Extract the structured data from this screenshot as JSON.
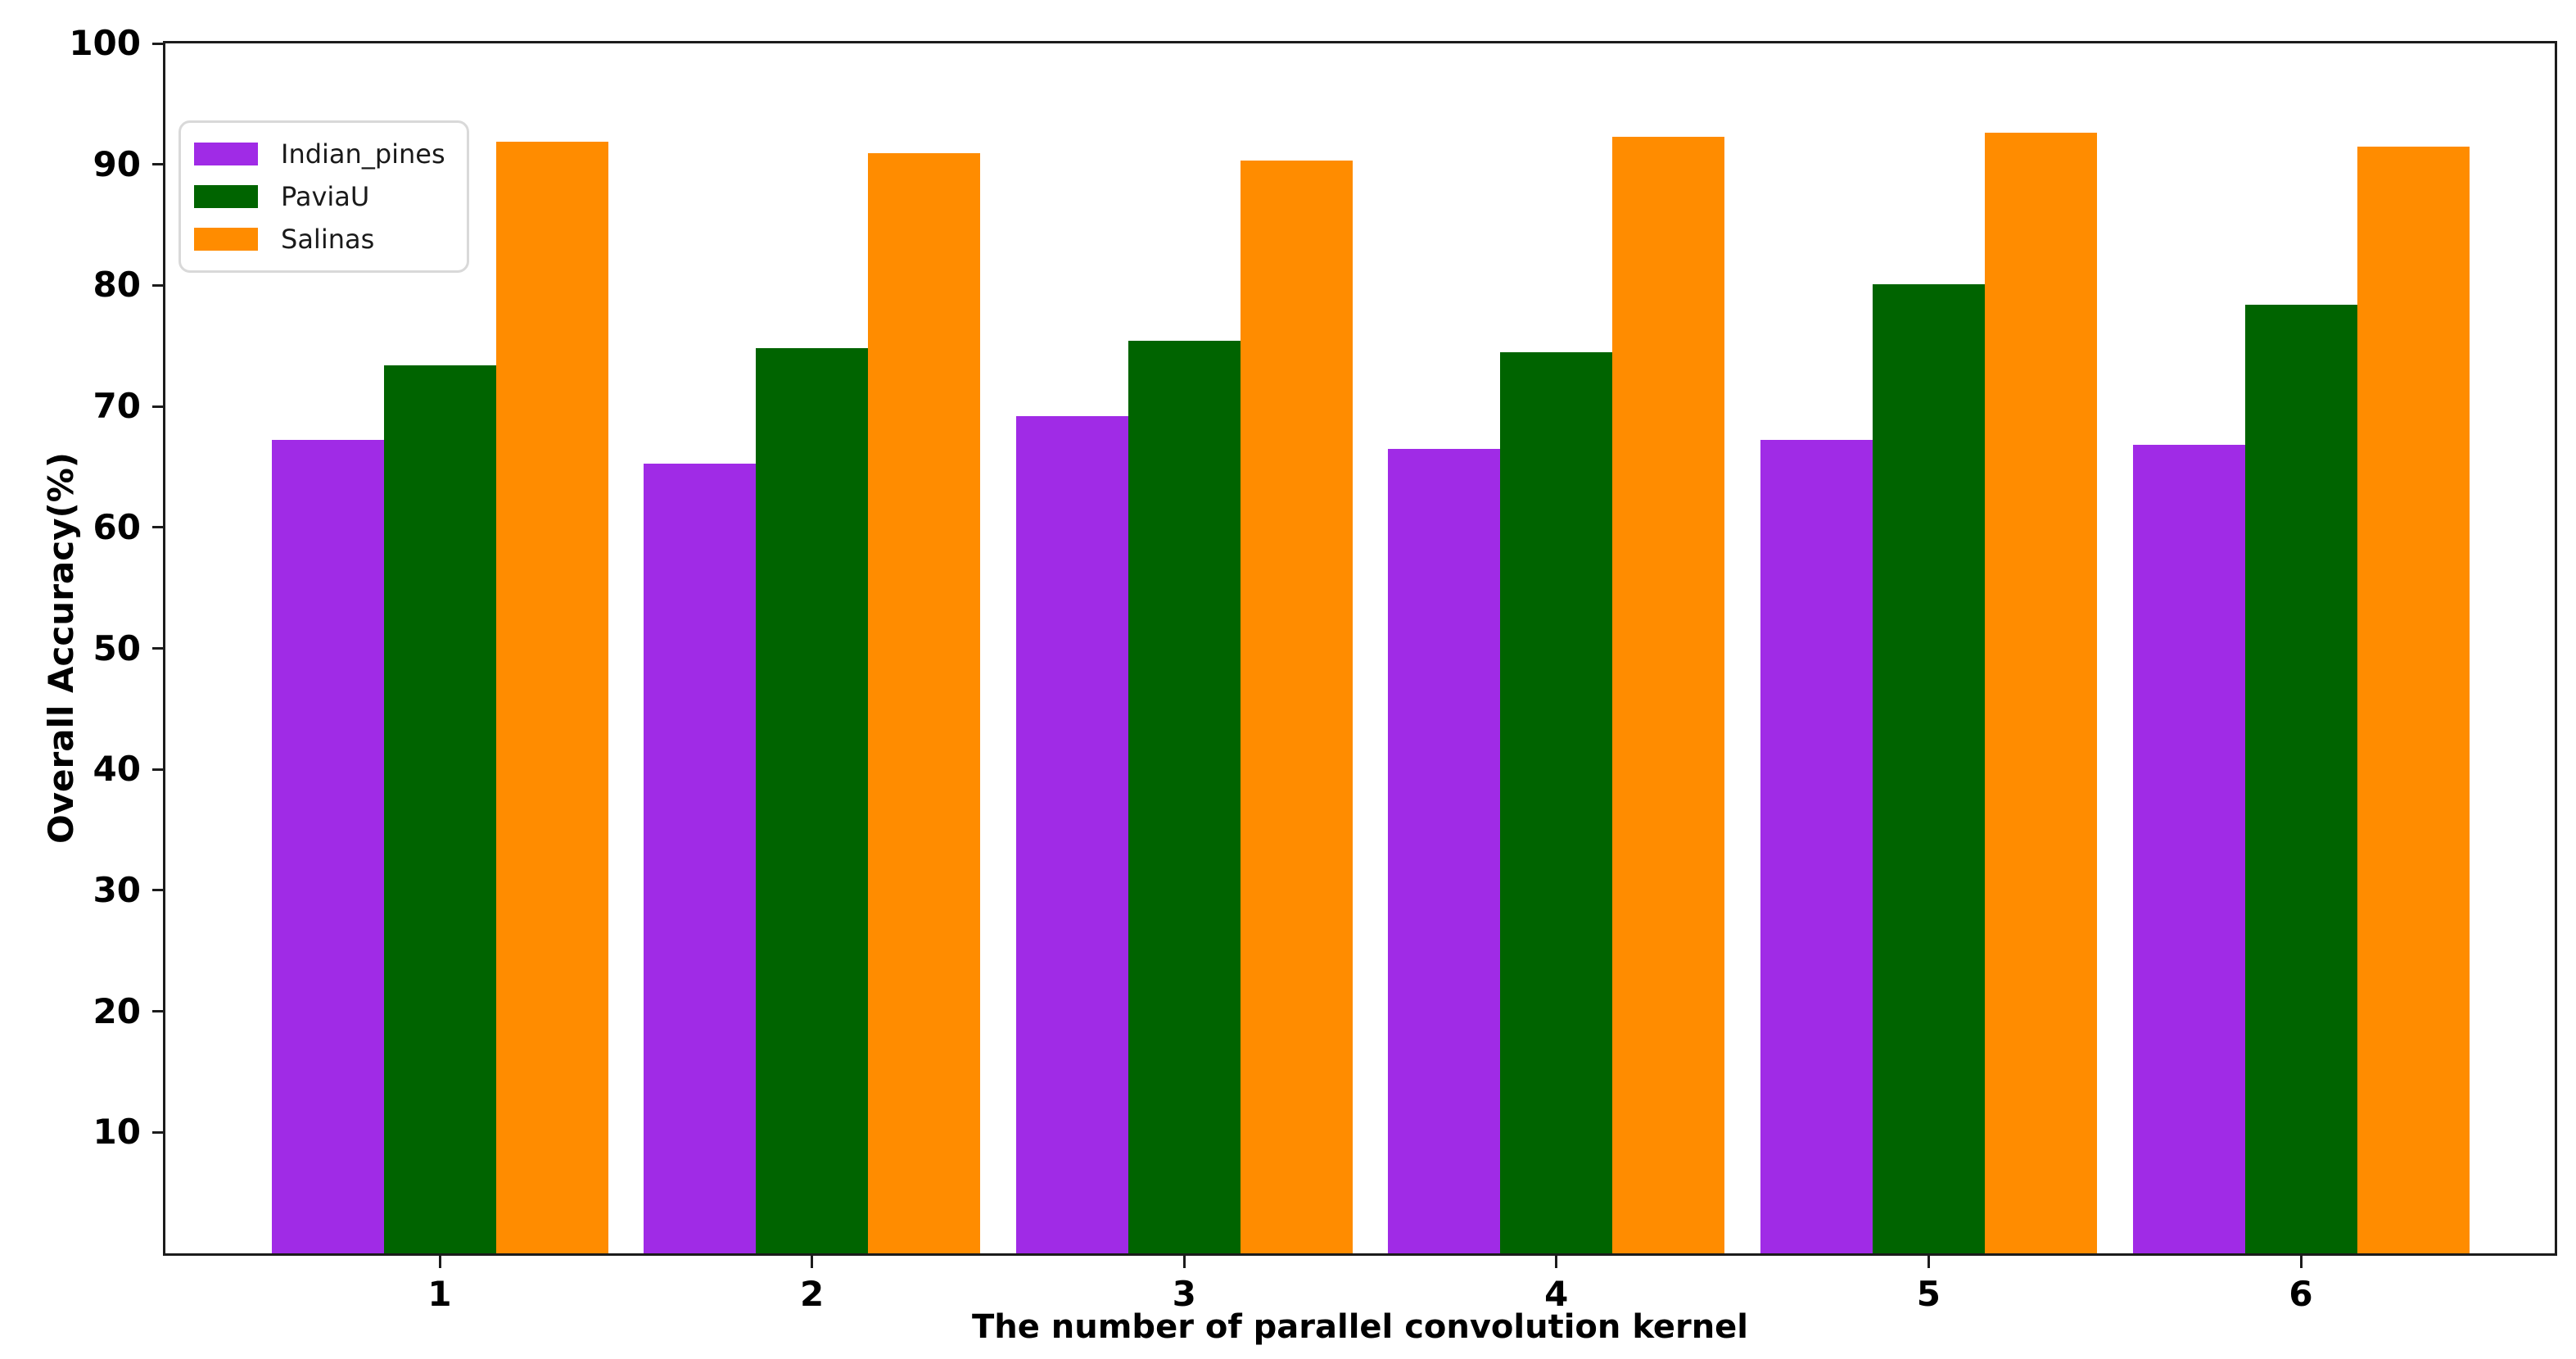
{
  "chart_data": {
    "type": "bar",
    "title": "",
    "xlabel": "The number of parallel convolution kernel",
    "ylabel": "Overall Accuracy(%)",
    "categories": [
      "1",
      "2",
      "3",
      "4",
      "5",
      "6"
    ],
    "series": [
      {
        "name": "Indian_pines",
        "color": "#a02be6",
        "values": [
          67.2,
          65.3,
          69.2,
          66.5,
          67.2,
          66.8
        ]
      },
      {
        "name": "PaviaU",
        "color": "#006400",
        "values": [
          73.4,
          74.8,
          75.4,
          74.5,
          80.1,
          78.4
        ]
      },
      {
        "name": "Salinas",
        "color": "#ff8c00",
        "values": [
          91.9,
          90.9,
          90.3,
          92.3,
          92.6,
          91.5
        ]
      }
    ],
    "ylim": [
      0,
      100
    ],
    "yticks": [
      10,
      20,
      30,
      40,
      50,
      60,
      70,
      80,
      90,
      100
    ],
    "grid": false,
    "legend_position": "upper-left",
    "axis_color": "#1c1c1c",
    "background_color": "#ffffff"
  }
}
